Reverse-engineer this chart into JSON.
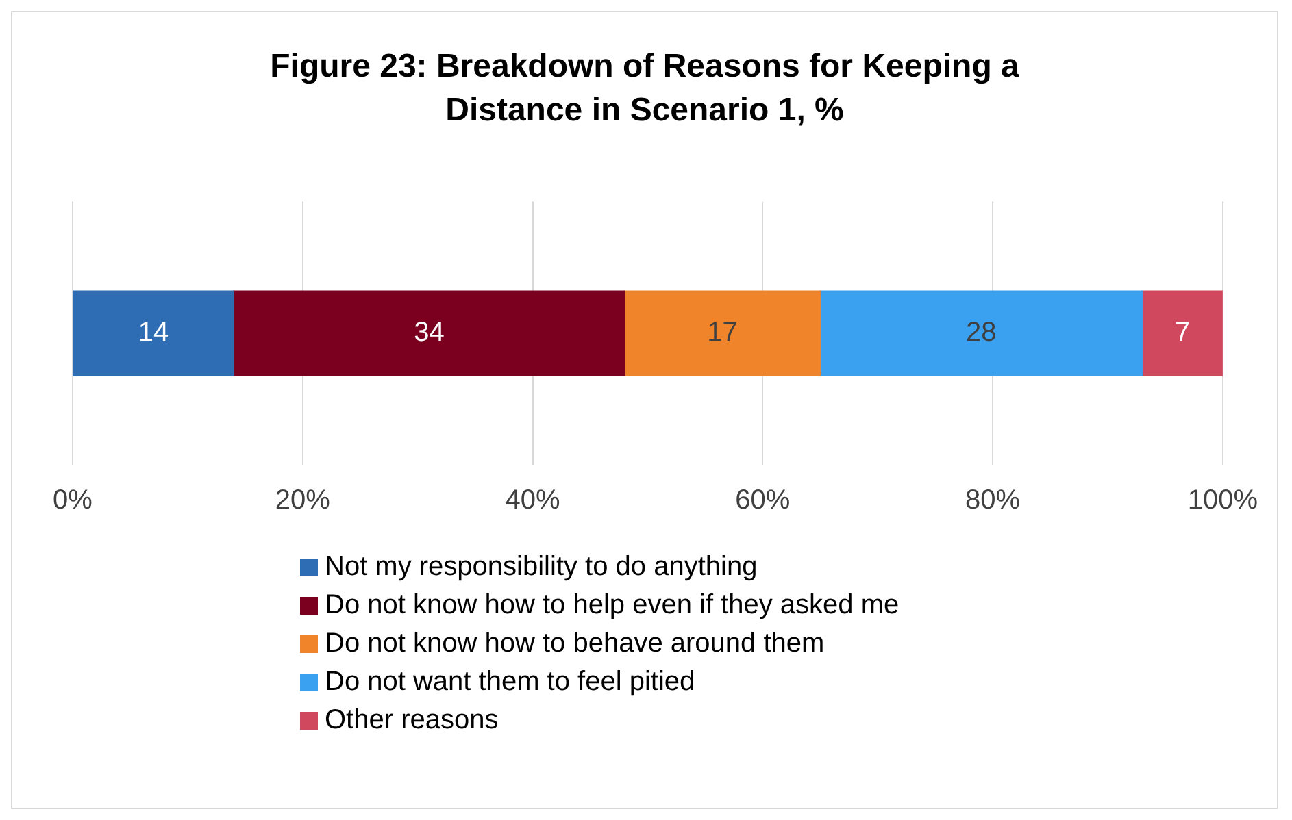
{
  "chart_data": {
    "type": "bar",
    "title": "Figure 23: Breakdown of Reasons for Keeping a Distance in Scenario 1, %",
    "orientation": "horizontal",
    "stacked": true,
    "categories": [
      null
    ],
    "series": [
      {
        "name": "Not my responsibility to do anything",
        "color": "#2e6db4",
        "values": [
          14
        ]
      },
      {
        "name": "Do not know how to help even if they asked me",
        "color": "#7b0020",
        "values": [
          34
        ]
      },
      {
        "name": "Do not know how to behave around them",
        "color": "#f0842a",
        "values": [
          17
        ]
      },
      {
        "name": "Do not want them to feel pitied",
        "color": "#3aa0f0",
        "values": [
          28
        ]
      },
      {
        "name": "Other reasons",
        "color": "#d0485e",
        "values": [
          7
        ]
      }
    ],
    "xlim": [
      0,
      100
    ],
    "xticks": [
      {
        "value": 0,
        "label": "0%"
      },
      {
        "value": 20,
        "label": "20%"
      },
      {
        "value": 40,
        "label": "40%"
      },
      {
        "value": 60,
        "label": "60%"
      },
      {
        "value": 80,
        "label": "80%"
      },
      {
        "value": 100,
        "label": "100%"
      }
    ],
    "grid": "x",
    "legend": "bottom",
    "data_labels": true
  }
}
